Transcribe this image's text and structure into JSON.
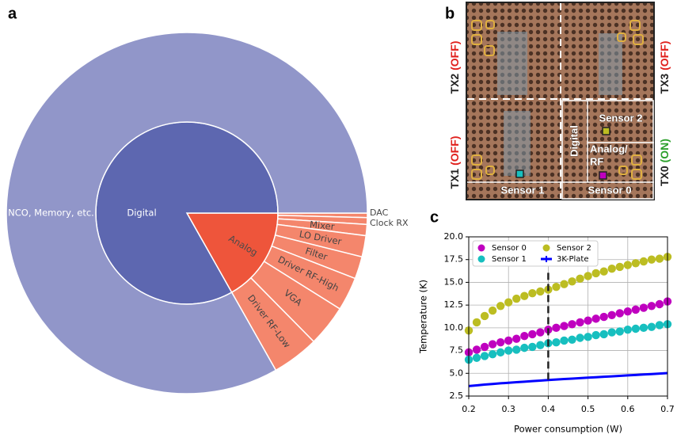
{
  "chart_data": [
    {
      "type": "sunburst",
      "label": "a",
      "categories": [
        "Analog",
        "Digital"
      ],
      "values": [
        16.8,
        83.2
      ],
      "colors": [
        "#ee553b",
        "#5d67b0"
      ],
      "label_colors": [
        "#4a4a4a",
        "#ffffff"
      ],
      "children": [
        {
          "categories": [
            "DAC",
            "Clock RX",
            "Mixer",
            "LO Driver",
            "Filter",
            "Driver RF-High",
            "VGA",
            "Driver RF-Low"
          ],
          "values": [
            0.4,
            0.6,
            1.0,
            1.9,
            2.0,
            3.0,
            3.7,
            4.2
          ],
          "color": "#f4866c",
          "label_color": "#444444"
        },
        {
          "categories": [
            "NCO, Memory, etc."
          ],
          "values": [
            83.2
          ],
          "color": "#9196c9",
          "label_color": "#ffffff"
        }
      ]
    },
    {
      "type": "scatter",
      "label": "c",
      "xlabel": "Power consumption (W)",
      "ylabel": "Temperature (K)",
      "x": [
        0.2,
        0.22,
        0.24,
        0.26,
        0.28,
        0.3,
        0.32,
        0.34,
        0.36,
        0.38,
        0.4,
        0.42,
        0.44,
        0.46,
        0.48,
        0.5,
        0.52,
        0.54,
        0.56,
        0.58,
        0.6,
        0.62,
        0.64,
        0.66,
        0.68,
        0.7
      ],
      "series": [
        {
          "name": "Sensor 0",
          "color": "#bf00bf",
          "style": "marker",
          "values": [
            7.3,
            7.6,
            7.9,
            8.2,
            8.4,
            8.6,
            8.8,
            9.1,
            9.3,
            9.5,
            9.8,
            10.0,
            10.2,
            10.4,
            10.6,
            10.8,
            11.0,
            11.2,
            11.4,
            11.6,
            11.8,
            12.0,
            12.2,
            12.4,
            12.6,
            12.9
          ]
        },
        {
          "name": "Sensor 1",
          "color": "#17bfbf",
          "style": "marker",
          "values": [
            6.5,
            6.7,
            6.9,
            7.1,
            7.3,
            7.5,
            7.6,
            7.8,
            7.9,
            8.1,
            8.3,
            8.4,
            8.6,
            8.7,
            8.9,
            9.0,
            9.2,
            9.3,
            9.5,
            9.6,
            9.8,
            9.9,
            10.0,
            10.1,
            10.3,
            10.4
          ]
        },
        {
          "name": "Sensor 2",
          "color": "#bcbd22",
          "style": "marker",
          "values": [
            9.7,
            10.6,
            11.3,
            11.9,
            12.4,
            12.8,
            13.2,
            13.5,
            13.8,
            14.0,
            14.2,
            14.5,
            14.8,
            15.1,
            15.4,
            15.7,
            16.0,
            16.2,
            16.5,
            16.7,
            16.9,
            17.1,
            17.3,
            17.5,
            17.6,
            17.8
          ]
        },
        {
          "name": "3K-Plate",
          "color": "#0000ff",
          "style": "line",
          "values": [
            3.6,
            3.68,
            3.76,
            3.83,
            3.9,
            3.96,
            4.02,
            4.08,
            4.14,
            4.2,
            4.26,
            4.32,
            4.37,
            4.42,
            4.47,
            4.52,
            4.57,
            4.62,
            4.67,
            4.72,
            4.77,
            4.82,
            4.87,
            4.92,
            4.97,
            5.02
          ]
        }
      ],
      "xlim": [
        0.2,
        0.7
      ],
      "ylim": [
        2.5,
        20
      ],
      "xticks": [
        0.2,
        0.3,
        0.4,
        0.5,
        0.6,
        0.7
      ],
      "yticks": [
        2.5,
        {
          "value": 5,
          "label": "5.0"
        },
        7.5,
        {
          "value": 10,
          "label": "10.0"
        },
        12.5,
        {
          "value": 15,
          "label": "15.0"
        },
        17.5,
        {
          "value": 20,
          "label": "20.0"
        }
      ],
      "grid": true,
      "legend": "upper left",
      "vline": {
        "x": 0.4,
        "y": [
          4.3,
          16.2
        ],
        "color": "#222222"
      }
    }
  ],
  "photo": {
    "label": "b",
    "transmitters": [
      {
        "name": "TX2",
        "state": "(OFF)",
        "color": "#e0201c"
      },
      {
        "name": "TX3",
        "state": "(OFF)",
        "color": "#e0201c"
      },
      {
        "name": "TX1",
        "state": "(OFF)",
        "color": "#e0201c"
      },
      {
        "name": "TX0",
        "state": "(ON)",
        "color": "#2ca02c"
      }
    ],
    "regions": [
      "Digital",
      "Analog/",
      "RF"
    ],
    "sensors": [
      "Sensor 0",
      "Sensor 1",
      "Sensor 2"
    ]
  }
}
